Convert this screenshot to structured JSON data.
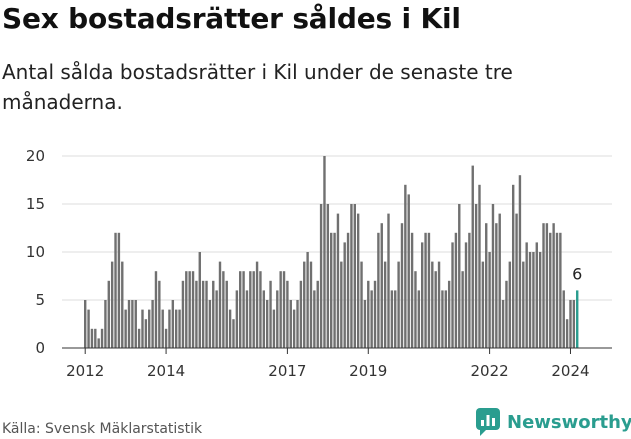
{
  "header": {
    "title": "Sex bostadsrätter såldes i Kil",
    "subtitle": "Antal sålda bostadsrätter i Kil under de senaste tre månaderna."
  },
  "footer": {
    "source": "Källa: Svensk Mäklarstatistik",
    "brand": "Newsworthy"
  },
  "colors": {
    "bar": "#707070",
    "highlight": "#2a9d8f",
    "grid": "#dddddd",
    "axis": "#333333",
    "brand": "#2a9d8f"
  },
  "chart_data": {
    "type": "bar",
    "title": "Sex bostadsrätter såldes i Kil",
    "subtitle": "Antal sålda bostadsrätter i Kil under de senaste tre månaderna.",
    "xlabel": "",
    "ylabel": "",
    "start": "2012-01",
    "interval": "month",
    "ylim": [
      0,
      20
    ],
    "yticks": [
      0,
      5,
      10,
      15,
      20
    ],
    "xticks": [
      "2012",
      "2014",
      "2017",
      "2019",
      "2022",
      "2024"
    ],
    "xtick_month_index": [
      0,
      24,
      60,
      84,
      120,
      144
    ],
    "grid": true,
    "legend": "none",
    "values": [
      5,
      4,
      2,
      2,
      1,
      2,
      5,
      7,
      9,
      12,
      12,
      9,
      4,
      5,
      5,
      5,
      2,
      4,
      3,
      4,
      5,
      8,
      7,
      4,
      2,
      4,
      5,
      4,
      4,
      7,
      8,
      8,
      8,
      7,
      10,
      7,
      7,
      5,
      7,
      6,
      9,
      8,
      7,
      4,
      3,
      6,
      8,
      8,
      6,
      8,
      8,
      9,
      8,
      6,
      5,
      7,
      4,
      6,
      8,
      8,
      7,
      5,
      4,
      5,
      7,
      9,
      10,
      9,
      6,
      7,
      15,
      20,
      15,
      12,
      12,
      14,
      9,
      11,
      12,
      15,
      15,
      14,
      9,
      5,
      7,
      6,
      7,
      12,
      13,
      9,
      14,
      6,
      6,
      9,
      13,
      17,
      16,
      12,
      8,
      6,
      11,
      12,
      12,
      9,
      8,
      9,
      6,
      6,
      7,
      11,
      12,
      15,
      8,
      11,
      12,
      19,
      15,
      17,
      9,
      13,
      10,
      15,
      13,
      14,
      5,
      7,
      9,
      17,
      14,
      18,
      9,
      11,
      10,
      10,
      11,
      10,
      13,
      13,
      12,
      13,
      12,
      12,
      6,
      3,
      5,
      5,
      6
    ],
    "highlight_index": 146,
    "annotations": [
      {
        "index": 146,
        "text": "6"
      }
    ]
  }
}
